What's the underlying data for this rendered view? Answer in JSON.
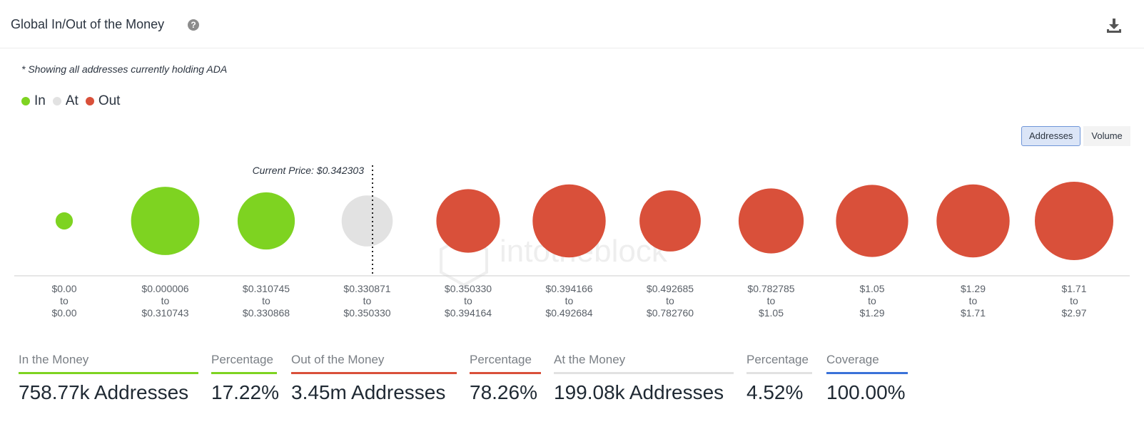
{
  "header": {
    "title": "Global In/Out of the Money",
    "help_icon": "help-icon",
    "download_icon": "download-icon"
  },
  "note": "* Showing all addresses currently holding ADA",
  "legend": [
    {
      "label": "In",
      "color": "#7ed321"
    },
    {
      "label": "At",
      "color": "#e2e2e2"
    },
    {
      "label": "Out",
      "color": "#d9503a"
    }
  ],
  "toggle": {
    "addresses": "Addresses",
    "volume": "Volume",
    "selected": "Addresses"
  },
  "watermark": "intotheblock",
  "chart_data": {
    "type": "bubble",
    "current_price_label": "Current Price: $0.342303",
    "current_price_position": "between $0.330871–$0.350330 bucket",
    "categories": [
      [
        "$0.00",
        "to",
        "$0.00"
      ],
      [
        "$0.000006",
        "to",
        "$0.310743"
      ],
      [
        "$0.310745",
        "to",
        "$0.330868"
      ],
      [
        "$0.330871",
        "to",
        "$0.350330"
      ],
      [
        "$0.350330",
        "to",
        "$0.394164"
      ],
      [
        "$0.394166",
        "to",
        "$0.492684"
      ],
      [
        "$0.492685",
        "to",
        "$0.782760"
      ],
      [
        "$0.782785",
        "to",
        "$1.05"
      ],
      [
        "$1.05",
        "to",
        "$1.29"
      ],
      [
        "$1.29",
        "to",
        "$1.71"
      ],
      [
        "$1.71",
        "to",
        "$2.97"
      ]
    ],
    "status": [
      "In",
      "In",
      "In",
      "At",
      "Out",
      "Out",
      "Out",
      "Out",
      "Out",
      "Out",
      "Out"
    ],
    "relative_size": [
      0.22,
      0.87,
      0.73,
      0.65,
      0.81,
      0.93,
      0.78,
      0.83,
      0.92,
      0.93,
      1.0
    ],
    "colors": {
      "In": "#7ed321",
      "At": "#e2e2e2",
      "Out": "#d9503a"
    }
  },
  "stats": [
    {
      "label": "In the Money",
      "value": "758.77k Addresses",
      "color": "#7ed321"
    },
    {
      "label": "Percentage",
      "value": "17.22%",
      "color": "#7ed321"
    },
    {
      "label": "Out of the Money",
      "value": "3.45m Addresses",
      "color": "#d9503a"
    },
    {
      "label": "Percentage",
      "value": "78.26%",
      "color": "#d9503a"
    },
    {
      "label": "At the Money",
      "value": "199.08k Addresses",
      "color": "#e2e2e2"
    },
    {
      "label": "Percentage",
      "value": "4.52%",
      "color": "#e2e2e2"
    },
    {
      "label": "Coverage",
      "value": "100.00%",
      "color": "#3a72d8"
    }
  ]
}
